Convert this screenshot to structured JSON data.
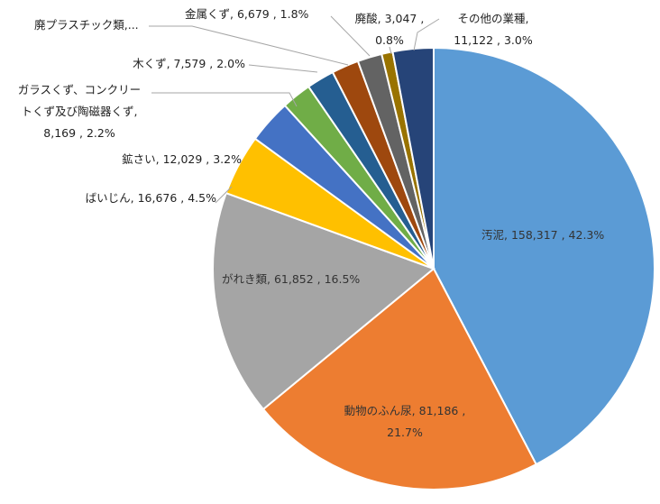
{
  "chart_data": {
    "type": "pie",
    "categories": [
      "汚泥",
      "動物のふん尿",
      "がれき類",
      "ばいじん",
      "鉱さい",
      "ガラスくず、コンクリートくず及び陶磁器くず",
      "木くず",
      "廃プラスチック類",
      "金属くず",
      "廃酸",
      "その他の業種"
    ],
    "values": [
      158317,
      81186,
      61852,
      16676,
      12029,
      8169,
      7579,
      7431,
      6679,
      3047,
      11122
    ],
    "percents": [
      "42.3%",
      "21.7%",
      "16.5%",
      "4.5%",
      "3.2%",
      "2.2%",
      "2.0%",
      "",
      "1.8%",
      "0.8%",
      "3.0%"
    ],
    "value_labels": [
      "158,317",
      "81,186",
      "61,852",
      "16,676",
      "12,029",
      "8,169",
      "7,579",
      "",
      "6,679",
      "3,047",
      "11,122"
    ],
    "colors": [
      "#5B9BD5",
      "#ED7D31",
      "#A5A5A5",
      "#FFC000",
      "#4472C4",
      "#70AD47",
      "#255E91",
      "#9E480E",
      "#636363",
      "#997300",
      "#264478"
    ],
    "labels": {
      "osei": "汚泥, 158,317 , 42.3%",
      "funnyo_1": "動物のふん尿, 81,186 ,",
      "funnyo_2": "21.7%",
      "gareki": "がれき類, 61,852 , 16.5%",
      "baijin": "ばいじん, 16,676 , 4.5%",
      "kousai": "鉱さい, 12,029 , 3.2%",
      "glass_1": "ガラスくず、コンクリー",
      "glass_2": "トくず及び陶磁器くず,",
      "glass_3": "8,169 , 2.2%",
      "mokuzu": "木くず, 7,579 , 2.0%",
      "plastic": "廃プラスチック類,...",
      "kinzoku": "金属くず, 6,679 , 1.8%",
      "haisan_1": "廃酸, 3,047 ,",
      "haisan_2": "0.8%",
      "sonota_1": "その他の業種,",
      "sonota_2": "11,122 , 3.0%"
    }
  }
}
